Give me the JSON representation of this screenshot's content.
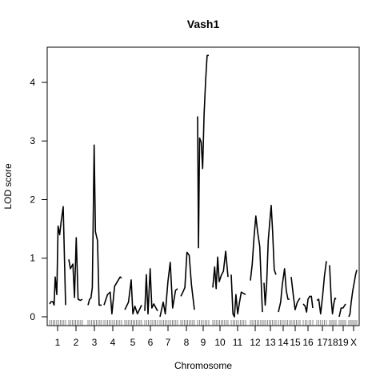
{
  "chart_data": {
    "type": "line",
    "title": "Vash1",
    "xlabel": "Chromosome",
    "ylabel": "LOD score",
    "ylim": [
      -0.15,
      4.6
    ],
    "yticks": [
      0,
      1,
      2,
      3,
      4
    ],
    "grid": false,
    "chromosomes": [
      {
        "name": "1",
        "x": [
          0.0,
          0.1,
          0.2,
          0.28,
          0.35,
          0.45,
          0.53,
          0.63,
          0.72,
          0.85,
          1.0
        ],
        "y": [
          0.22,
          0.26,
          0.26,
          0.2,
          0.68,
          0.38,
          1.55,
          1.4,
          1.62,
          1.88,
          0.2
        ]
      },
      {
        "name": "2",
        "x": [
          0.0,
          0.12,
          0.3,
          0.42,
          0.55,
          0.68,
          0.85,
          1.0
        ],
        "y": [
          0.98,
          0.82,
          0.9,
          0.33,
          1.35,
          0.3,
          0.28,
          0.3
        ]
      },
      {
        "name": "3",
        "x": [
          0.0,
          0.12,
          0.22,
          0.32,
          0.45,
          0.55,
          0.7,
          0.82,
          1.0
        ],
        "y": [
          0.2,
          0.3,
          0.32,
          0.5,
          2.93,
          1.45,
          1.3,
          0.2,
          0.2
        ]
      },
      {
        "name": "4",
        "x": [
          0.0,
          0.2,
          0.35,
          0.45,
          0.6,
          0.8,
          0.92,
          1.0
        ],
        "y": [
          0.2,
          0.38,
          0.42,
          0.05,
          0.52,
          0.62,
          0.68,
          0.66
        ]
      },
      {
        "name": "5",
        "x": [
          0.0,
          0.22,
          0.38,
          0.48,
          0.6,
          0.75,
          1.0
        ],
        "y": [
          0.12,
          0.25,
          0.63,
          0.05,
          0.18,
          0.05,
          0.2
        ]
      },
      {
        "name": "6",
        "x": [
          0.0,
          0.12,
          0.25,
          0.42,
          0.55,
          0.7,
          1.0
        ],
        "y": [
          0.1,
          0.72,
          0.05,
          0.82,
          0.15,
          0.22,
          0.1
        ]
      },
      {
        "name": "7",
        "x": [
          0.0,
          0.18,
          0.3,
          0.45,
          0.58,
          0.72,
          0.88,
          1.0
        ],
        "y": [
          0.0,
          0.25,
          0.05,
          0.6,
          0.93,
          0.15,
          0.45,
          0.48
        ]
      },
      {
        "name": "8",
        "x": [
          0.0,
          0.15,
          0.3,
          0.45,
          0.62,
          0.78,
          1.0
        ],
        "y": [
          0.35,
          0.42,
          0.5,
          1.1,
          1.05,
          0.55,
          0.12
        ]
      },
      {
        "name": "9",
        "x": [
          0.0,
          0.08,
          0.18,
          0.32,
          0.45,
          0.58,
          0.72,
          0.85,
          1.0
        ],
        "y": [
          3.42,
          1.18,
          3.05,
          2.98,
          2.53,
          3.45,
          4.05,
          4.46,
          4.46
        ]
      },
      {
        "name": "10",
        "x": [
          0.0,
          0.12,
          0.22,
          0.32,
          0.42,
          0.55,
          0.7,
          0.85,
          1.0
        ],
        "y": [
          0.5,
          0.85,
          0.48,
          1.02,
          0.6,
          0.7,
          0.78,
          1.12,
          0.68
        ]
      },
      {
        "name": "11",
        "x": [
          0.0,
          0.12,
          0.22,
          0.33,
          0.45,
          0.58,
          0.7,
          0.85,
          1.0
        ],
        "y": [
          0.72,
          0.05,
          0.0,
          0.38,
          0.05,
          0.25,
          0.42,
          0.4,
          0.38
        ]
      },
      {
        "name": "12",
        "x": [
          0.0,
          0.15,
          0.3,
          0.45,
          0.6,
          0.78,
          1.0
        ],
        "y": [
          0.62,
          0.9,
          1.35,
          1.72,
          1.45,
          1.2,
          0.08
        ]
      },
      {
        "name": "13",
        "x": [
          0.0,
          0.1,
          0.22,
          0.35,
          0.48,
          0.6,
          0.72,
          0.85,
          1.0
        ],
        "y": [
          0.58,
          0.2,
          0.55,
          1.3,
          1.62,
          1.9,
          1.45,
          0.8,
          0.72
        ]
      },
      {
        "name": "14",
        "x": [
          0.0,
          0.2,
          0.35,
          0.55,
          0.7,
          0.85,
          1.0
        ],
        "y": [
          0.08,
          0.25,
          0.55,
          0.82,
          0.45,
          0.3,
          0.3
        ]
      },
      {
        "name": "15",
        "x": [
          0.0,
          0.25,
          0.45,
          0.7,
          1.0
        ],
        "y": [
          0.68,
          0.35,
          0.12,
          0.25,
          0.32
        ]
      },
      {
        "name": "16",
        "x": [
          0.0,
          0.2,
          0.35,
          0.5,
          0.68,
          0.85,
          1.0
        ],
        "y": [
          0.22,
          0.18,
          0.08,
          0.3,
          0.35,
          0.35,
          0.15
        ]
      },
      {
        "name": "17",
        "x": [
          0.0,
          0.2,
          0.4,
          0.6,
          0.8,
          1.0
        ],
        "y": [
          0.28,
          0.3,
          0.05,
          0.35,
          0.7,
          0.95
        ]
      },
      {
        "name": "18",
        "x": [
          0.0,
          0.25,
          0.45,
          0.65,
          0.85,
          1.0
        ],
        "y": [
          0.88,
          0.3,
          0.05,
          0.22,
          0.32,
          0.3
        ]
      },
      {
        "name": "19",
        "x": [
          0.0,
          0.3,
          0.6,
          1.0
        ],
        "y": [
          0.0,
          0.15,
          0.15,
          0.22
        ]
      },
      {
        "name": "X",
        "x": [
          0.0,
          0.15,
          0.3,
          0.5,
          0.7,
          0.85,
          1.0
        ],
        "y": [
          0.0,
          0.05,
          0.25,
          0.45,
          0.6,
          0.72,
          0.8
        ]
      }
    ]
  }
}
